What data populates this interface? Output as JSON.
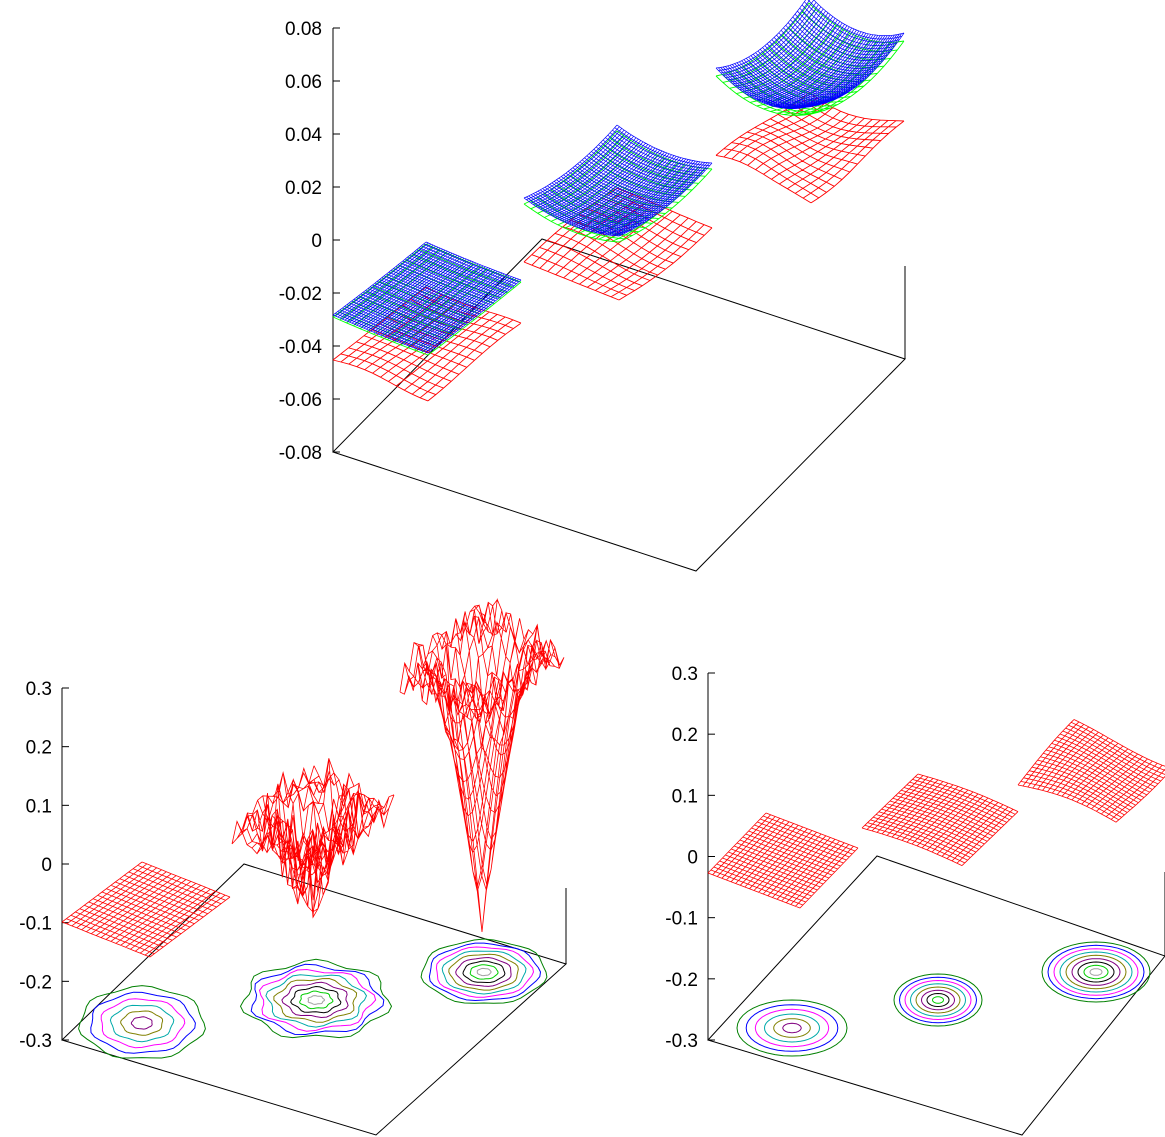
{
  "colors": {
    "axis": "#000000",
    "red": "#ff0000",
    "blue": "#0000ff",
    "green": "#00ff00",
    "contours": [
      "#008000",
      "#0000ff",
      "#ff00ff",
      "#00aaaa",
      "#808000",
      "#800080",
      "#000000",
      "#00cc00",
      "#a0a0a0"
    ]
  },
  "chart_data": [
    {
      "type": "surface",
      "title": "",
      "zlabel": "",
      "zlim": [
        -0.08,
        0.08
      ],
      "zticks": [
        "0.08",
        "0.06",
        "0.04",
        "0.02",
        "0",
        "-0.02",
        "-0.04",
        "-0.06",
        "-0.08"
      ],
      "grid": false,
      "series": [
        {
          "color": "red",
          "style": "wireframe",
          "levels": [
            -0.04,
            0.0,
            0.025
          ],
          "shape": "wavy"
        },
        {
          "color": "green",
          "style": "wireframe",
          "levels": [
            -0.027,
            0.01,
            0.058
          ],
          "shape": "bowl"
        },
        {
          "color": "blue",
          "style": "dense-wireframe",
          "levels": [
            -0.025,
            0.012,
            0.06
          ],
          "shape": "bowl"
        }
      ]
    },
    {
      "type": "surface",
      "title": "",
      "zlabel": "",
      "zlim": [
        -0.3,
        0.3
      ],
      "zticks": [
        "0.3",
        "0.2",
        "0.1",
        "0",
        "-0.1",
        "-0.2",
        "-0.3"
      ],
      "grid": false,
      "series": [
        {
          "color": "red",
          "style": "wireframe",
          "panels": [
            {
              "level": -0.1,
              "shape": "flat"
            },
            {
              "level": 0.09,
              "shape": "noisy-well",
              "min": -0.14
            },
            {
              "level": 0.25,
              "shape": "deep-well",
              "min": -0.19
            }
          ]
        }
      ],
      "contours": "multicolor contour lines on base plane"
    },
    {
      "type": "surface",
      "title": "",
      "zlabel": "",
      "zlim": [
        -0.3,
        0.3
      ],
      "zticks": [
        "0.3",
        "0.2",
        "0.1",
        "0",
        "-0.1",
        "-0.2",
        "-0.3"
      ],
      "grid": false,
      "series": [
        {
          "color": "red",
          "style": "wireframe",
          "panels": [
            {
              "level": -0.03,
              "shape": "flat"
            },
            {
              "level": 0.07,
              "shape": "gentle"
            },
            {
              "level": 0.15,
              "shape": "gentle"
            }
          ]
        }
      ],
      "contours": "multicolor contour lines on base plane"
    }
  ]
}
